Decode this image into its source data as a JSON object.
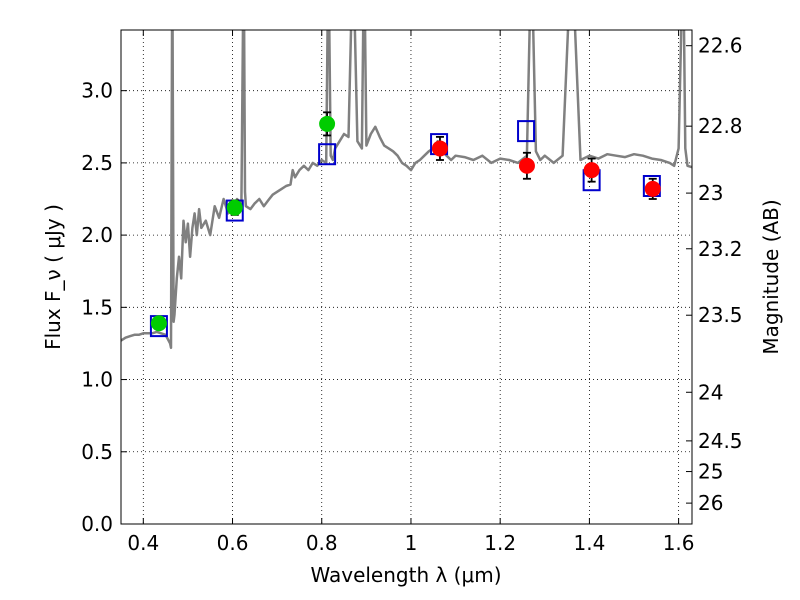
{
  "chart_data": {
    "type": "scatter",
    "xlabel": "Wavelength  λ (μm)",
    "ylabel": "Flux  F_ν  ( μJy )",
    "ylabel_right": "Magnitude (AB)",
    "xlim": [
      0.35,
      1.63
    ],
    "ylim": [
      0.0,
      3.42
    ],
    "grid": true,
    "x_ticks": [
      {
        "value": 0.4,
        "label": "0.4"
      },
      {
        "value": 0.6,
        "label": "0.6"
      },
      {
        "value": 0.8,
        "label": "0.8"
      },
      {
        "value": 1.0,
        "label": "1"
      },
      {
        "value": 1.2,
        "label": "1.2"
      },
      {
        "value": 1.4,
        "label": "1.4"
      },
      {
        "value": 1.6,
        "label": "1.6"
      }
    ],
    "y_ticks": [
      {
        "value": 0.0,
        "label": "0.0"
      },
      {
        "value": 0.5,
        "label": "0.5"
      },
      {
        "value": 1.0,
        "label": "1.0"
      },
      {
        "value": 1.5,
        "label": "1.5"
      },
      {
        "value": 2.0,
        "label": "2.0"
      },
      {
        "value": 2.5,
        "label": "2.5"
      },
      {
        "value": 3.0,
        "label": "3.0"
      }
    ],
    "right_ticks": [
      {
        "mag": 22.6,
        "label": "22.6"
      },
      {
        "mag": 22.8,
        "label": "22.8"
      },
      {
        "mag": 23.0,
        "label": "23"
      },
      {
        "mag": 23.2,
        "label": "23.2"
      },
      {
        "mag": 23.5,
        "label": "23.5"
      },
      {
        "mag": 24.0,
        "label": "24"
      },
      {
        "mag": 24.5,
        "label": "24.5"
      },
      {
        "mag": 25.0,
        "label": "25"
      },
      {
        "mag": 26.0,
        "label": "26"
      }
    ],
    "series": [
      {
        "kind": "model_spectrum",
        "color": "#808080",
        "x": [
          0.35,
          0.36,
          0.37,
          0.38,
          0.39,
          0.4,
          0.41,
          0.42,
          0.43,
          0.44,
          0.45,
          0.455,
          0.46,
          0.462,
          0.465,
          0.468,
          0.47,
          0.472,
          0.475,
          0.48,
          0.485,
          0.49,
          0.495,
          0.5,
          0.505,
          0.51,
          0.515,
          0.52,
          0.525,
          0.53,
          0.54,
          0.55,
          0.56,
          0.57,
          0.58,
          0.59,
          0.6,
          0.61,
          0.62,
          0.625,
          0.628,
          0.63,
          0.64,
          0.65,
          0.66,
          0.67,
          0.68,
          0.69,
          0.7,
          0.71,
          0.72,
          0.73,
          0.735,
          0.74,
          0.75,
          0.76,
          0.77,
          0.78,
          0.79,
          0.8,
          0.81,
          0.815,
          0.82,
          0.825,
          0.83,
          0.84,
          0.85,
          0.86,
          0.87,
          0.88,
          0.89,
          0.895,
          0.9,
          0.91,
          0.92,
          0.93,
          0.94,
          0.95,
          0.96,
          0.97,
          0.98,
          0.99,
          1.0,
          1.01,
          1.02,
          1.03,
          1.04,
          1.05,
          1.06,
          1.07,
          1.08,
          1.09,
          1.1,
          1.12,
          1.14,
          1.16,
          1.18,
          1.2,
          1.22,
          1.24,
          1.26,
          1.27,
          1.28,
          1.29,
          1.3,
          1.32,
          1.34,
          1.36,
          1.38,
          1.4,
          1.42,
          1.44,
          1.46,
          1.48,
          1.5,
          1.52,
          1.54,
          1.56,
          1.58,
          1.59,
          1.6,
          1.61,
          1.615,
          1.62,
          1.63
        ],
        "y": [
          1.27,
          1.29,
          1.3,
          1.31,
          1.31,
          1.32,
          1.32,
          1.32,
          1.33,
          1.32,
          1.31,
          1.28,
          1.25,
          1.22,
          4.0,
          1.4,
          1.45,
          1.55,
          1.7,
          1.85,
          1.7,
          2.1,
          1.95,
          2.08,
          1.85,
          2.05,
          2.15,
          2.0,
          2.18,
          2.05,
          2.1,
          2.0,
          2.2,
          2.12,
          2.25,
          2.15,
          2.18,
          2.25,
          2.22,
          4.0,
          2.3,
          2.2,
          2.18,
          2.22,
          2.25,
          2.2,
          2.24,
          2.28,
          2.3,
          2.32,
          2.34,
          2.35,
          2.45,
          2.4,
          2.45,
          2.48,
          2.45,
          2.5,
          2.48,
          2.52,
          2.5,
          4.0,
          2.55,
          2.52,
          2.6,
          2.65,
          2.7,
          2.68,
          4.0,
          2.65,
          2.6,
          4.0,
          2.62,
          2.7,
          2.75,
          2.68,
          2.62,
          2.6,
          2.58,
          2.55,
          2.5,
          2.48,
          2.45,
          2.5,
          2.52,
          2.55,
          2.58,
          2.6,
          2.65,
          2.58,
          2.55,
          2.52,
          2.55,
          2.54,
          2.52,
          2.55,
          2.5,
          2.53,
          2.52,
          2.5,
          2.55,
          4.0,
          2.58,
          2.52,
          2.55,
          2.5,
          2.55,
          4.0,
          2.52,
          2.55,
          2.53,
          2.56,
          2.55,
          2.54,
          2.56,
          2.55,
          2.53,
          2.52,
          2.5,
          2.48,
          2.6,
          4.0,
          2.6,
          2.48,
          2.47
        ]
      },
      {
        "kind": "model_photometry",
        "marker": "open-square",
        "color": "#0000cc",
        "x": [
          0.435,
          0.605,
          0.812,
          1.063,
          1.258,
          1.405,
          1.54
        ],
        "y": [
          1.37,
          2.17,
          2.56,
          2.63,
          2.72,
          2.38,
          2.34
        ]
      },
      {
        "kind": "observed_optical",
        "marker": "filled-circle",
        "color": "#00cc00",
        "x": [
          0.435,
          0.605,
          0.812
        ],
        "y": [
          1.39,
          2.19,
          2.77
        ],
        "err": [
          0.04,
          0.05,
          0.08
        ]
      },
      {
        "kind": "observed_nir",
        "marker": "filled-circle",
        "color": "#ff0000",
        "x": [
          1.065,
          1.26,
          1.405,
          1.542
        ],
        "y": [
          2.6,
          2.48,
          2.45,
          2.32
        ],
        "err": [
          0.08,
          0.09,
          0.08,
          0.07
        ]
      }
    ]
  }
}
